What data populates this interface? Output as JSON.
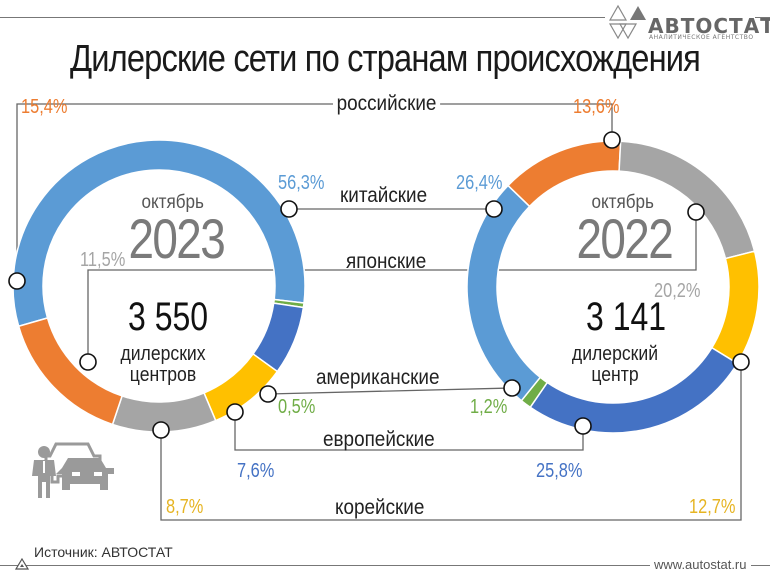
{
  "header": {
    "title": "Дилерские сети по странам происхождения",
    "logo": {
      "name": "АВТОСТАТ",
      "subtitle": "АНАЛИТИЧЕСКОЕ АГЕНТСТВО",
      "icon": "autostat-triangles-logo-icon"
    }
  },
  "colors": {
    "russian": "#ED7D31",
    "chinese": "#5B9BD5",
    "japanese": "#A5A5A5",
    "american": "#70AD47",
    "european": "#4472C4",
    "korean": "#FFC000",
    "line": "#555555"
  },
  "left_donut": {
    "month": "октябрь",
    "year": "2023",
    "count": "3 550",
    "count_label_1": "дилерских",
    "count_label_2": "центров"
  },
  "right_donut": {
    "month": "октябрь",
    "year": "2022",
    "count": "3 141",
    "count_label_1": "дилерский",
    "count_label_2": "центр"
  },
  "categories": {
    "russian": {
      "label": "российские",
      "v2023": "15,4%",
      "v2022": "13,6%"
    },
    "chinese": {
      "label": "китайские",
      "v2023": "56,3%",
      "v2022": "26,4%"
    },
    "japanese": {
      "label": "японские",
      "v2023": "11,5%",
      "v2022": "20,2%"
    },
    "american": {
      "label": "американские",
      "v2023": "0,5%",
      "v2022": "1,2%"
    },
    "european": {
      "label": "европейские",
      "v2023": "7,6%",
      "v2022": "25,8%"
    },
    "korean": {
      "label": "корейские",
      "v2023": "8,7%",
      "v2022": "12,7%"
    }
  },
  "footer": {
    "source": "Источник: АВТОСТАТ",
    "url": "www.autostat.ru"
  },
  "decor": {
    "icon": "car-dealer-icon"
  },
  "chart_data": [
    {
      "type": "pie",
      "title": "октябрь 2023 — 3 550 дилерских центров",
      "categories": [
        "китайские",
        "американские",
        "европейские",
        "корейские",
        "японские",
        "российские"
      ],
      "values": [
        56.3,
        0.5,
        7.6,
        8.7,
        11.5,
        15.4
      ],
      "colors": [
        "#5B9BD5",
        "#70AD47",
        "#4472C4",
        "#FFC000",
        "#A5A5A5",
        "#ED7D31"
      ],
      "total": 3550,
      "donut": true
    },
    {
      "type": "pie",
      "title": "октябрь 2022 — 3 141 дилерский центр",
      "categories": [
        "российские",
        "японские",
        "корейские",
        "европейские",
        "американские",
        "китайские"
      ],
      "values": [
        13.6,
        20.2,
        12.7,
        25.8,
        1.2,
        26.4
      ],
      "colors": [
        "#ED7D31",
        "#A5A5A5",
        "#FFC000",
        "#4472C4",
        "#70AD47",
        "#5B9BD5"
      ],
      "total": 3141,
      "donut": true
    }
  ]
}
